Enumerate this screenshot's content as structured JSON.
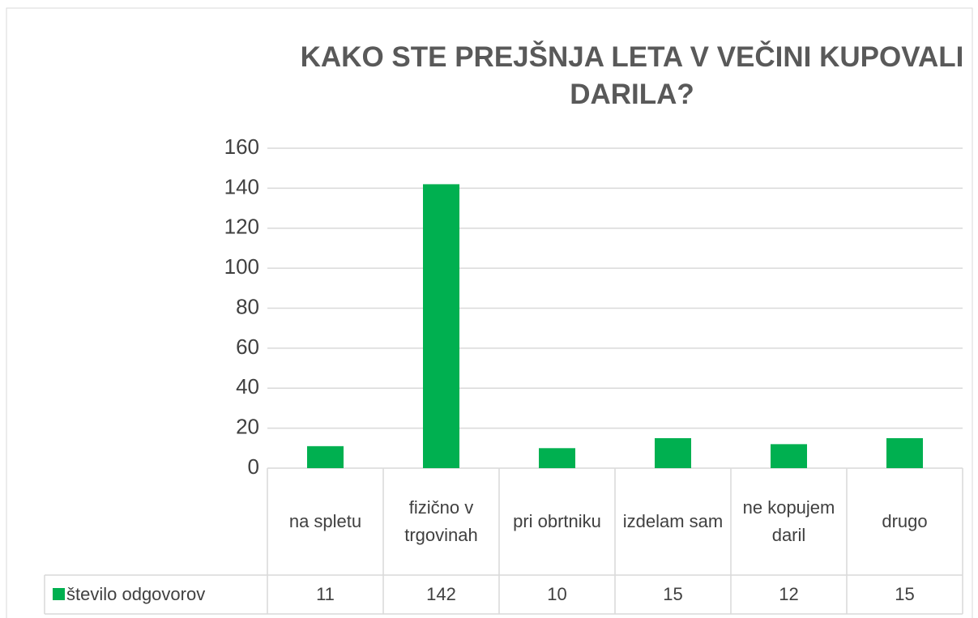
{
  "chart_data": {
    "type": "bar",
    "title": "KAKO STE PREJŠNJA LETA V VEČINI KUPOVALI DARILA?",
    "categories": [
      "na spletu",
      "fizično v trgovinah",
      "pri obrtniku",
      "izdelam sam",
      "ne kopujem daril",
      "drugo"
    ],
    "series": [
      {
        "name": "število odgovorov",
        "color": "#00b050",
        "values": [
          11,
          142,
          10,
          15,
          12,
          15
        ]
      }
    ],
    "ylim": [
      0,
      160
    ],
    "yticks": [
      0,
      20,
      40,
      60,
      80,
      100,
      120,
      140,
      160
    ],
    "grid": true,
    "legend": "bottom"
  }
}
